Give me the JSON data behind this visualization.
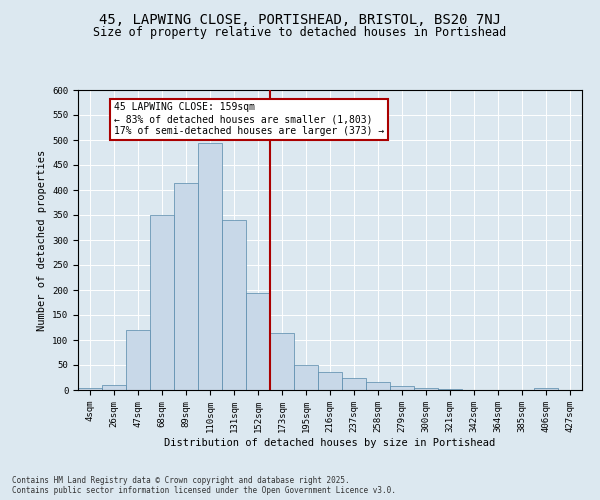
{
  "title": "45, LAPWING CLOSE, PORTISHEAD, BRISTOL, BS20 7NJ",
  "subtitle": "Size of property relative to detached houses in Portishead",
  "xlabel": "Distribution of detached houses by size in Portishead",
  "ylabel": "Number of detached properties",
  "bin_labels": [
    "4sqm",
    "26sqm",
    "47sqm",
    "68sqm",
    "89sqm",
    "110sqm",
    "131sqm",
    "152sqm",
    "173sqm",
    "195sqm",
    "216sqm",
    "237sqm",
    "258sqm",
    "279sqm",
    "300sqm",
    "321sqm",
    "342sqm",
    "364sqm",
    "385sqm",
    "406sqm",
    "427sqm"
  ],
  "bar_heights": [
    5,
    10,
    120,
    350,
    415,
    495,
    340,
    195,
    115,
    50,
    36,
    25,
    17,
    8,
    4,
    2,
    1,
    1,
    0,
    4,
    0
  ],
  "bar_color": "#c8d8e8",
  "bar_edge_color": "#5588aa",
  "vline_x": 7,
  "vline_color": "#aa0000",
  "annotation_text": "45 LAPWING CLOSE: 159sqm\n← 83% of detached houses are smaller (1,803)\n17% of semi-detached houses are larger (373) →",
  "annotation_box_color": "#aa0000",
  "annotation_fill": "#ffffff",
  "ylim": [
    0,
    600
  ],
  "yticks": [
    0,
    50,
    100,
    150,
    200,
    250,
    300,
    350,
    400,
    450,
    500,
    550,
    600
  ],
  "background_color": "#dce8f0",
  "footer_text": "Contains HM Land Registry data © Crown copyright and database right 2025.\nContains public sector information licensed under the Open Government Licence v3.0.",
  "title_fontsize": 10,
  "subtitle_fontsize": 8.5,
  "xlabel_fontsize": 7.5,
  "ylabel_fontsize": 7.5,
  "tick_fontsize": 6.5,
  "annotation_fontsize": 7,
  "footer_fontsize": 5.5
}
